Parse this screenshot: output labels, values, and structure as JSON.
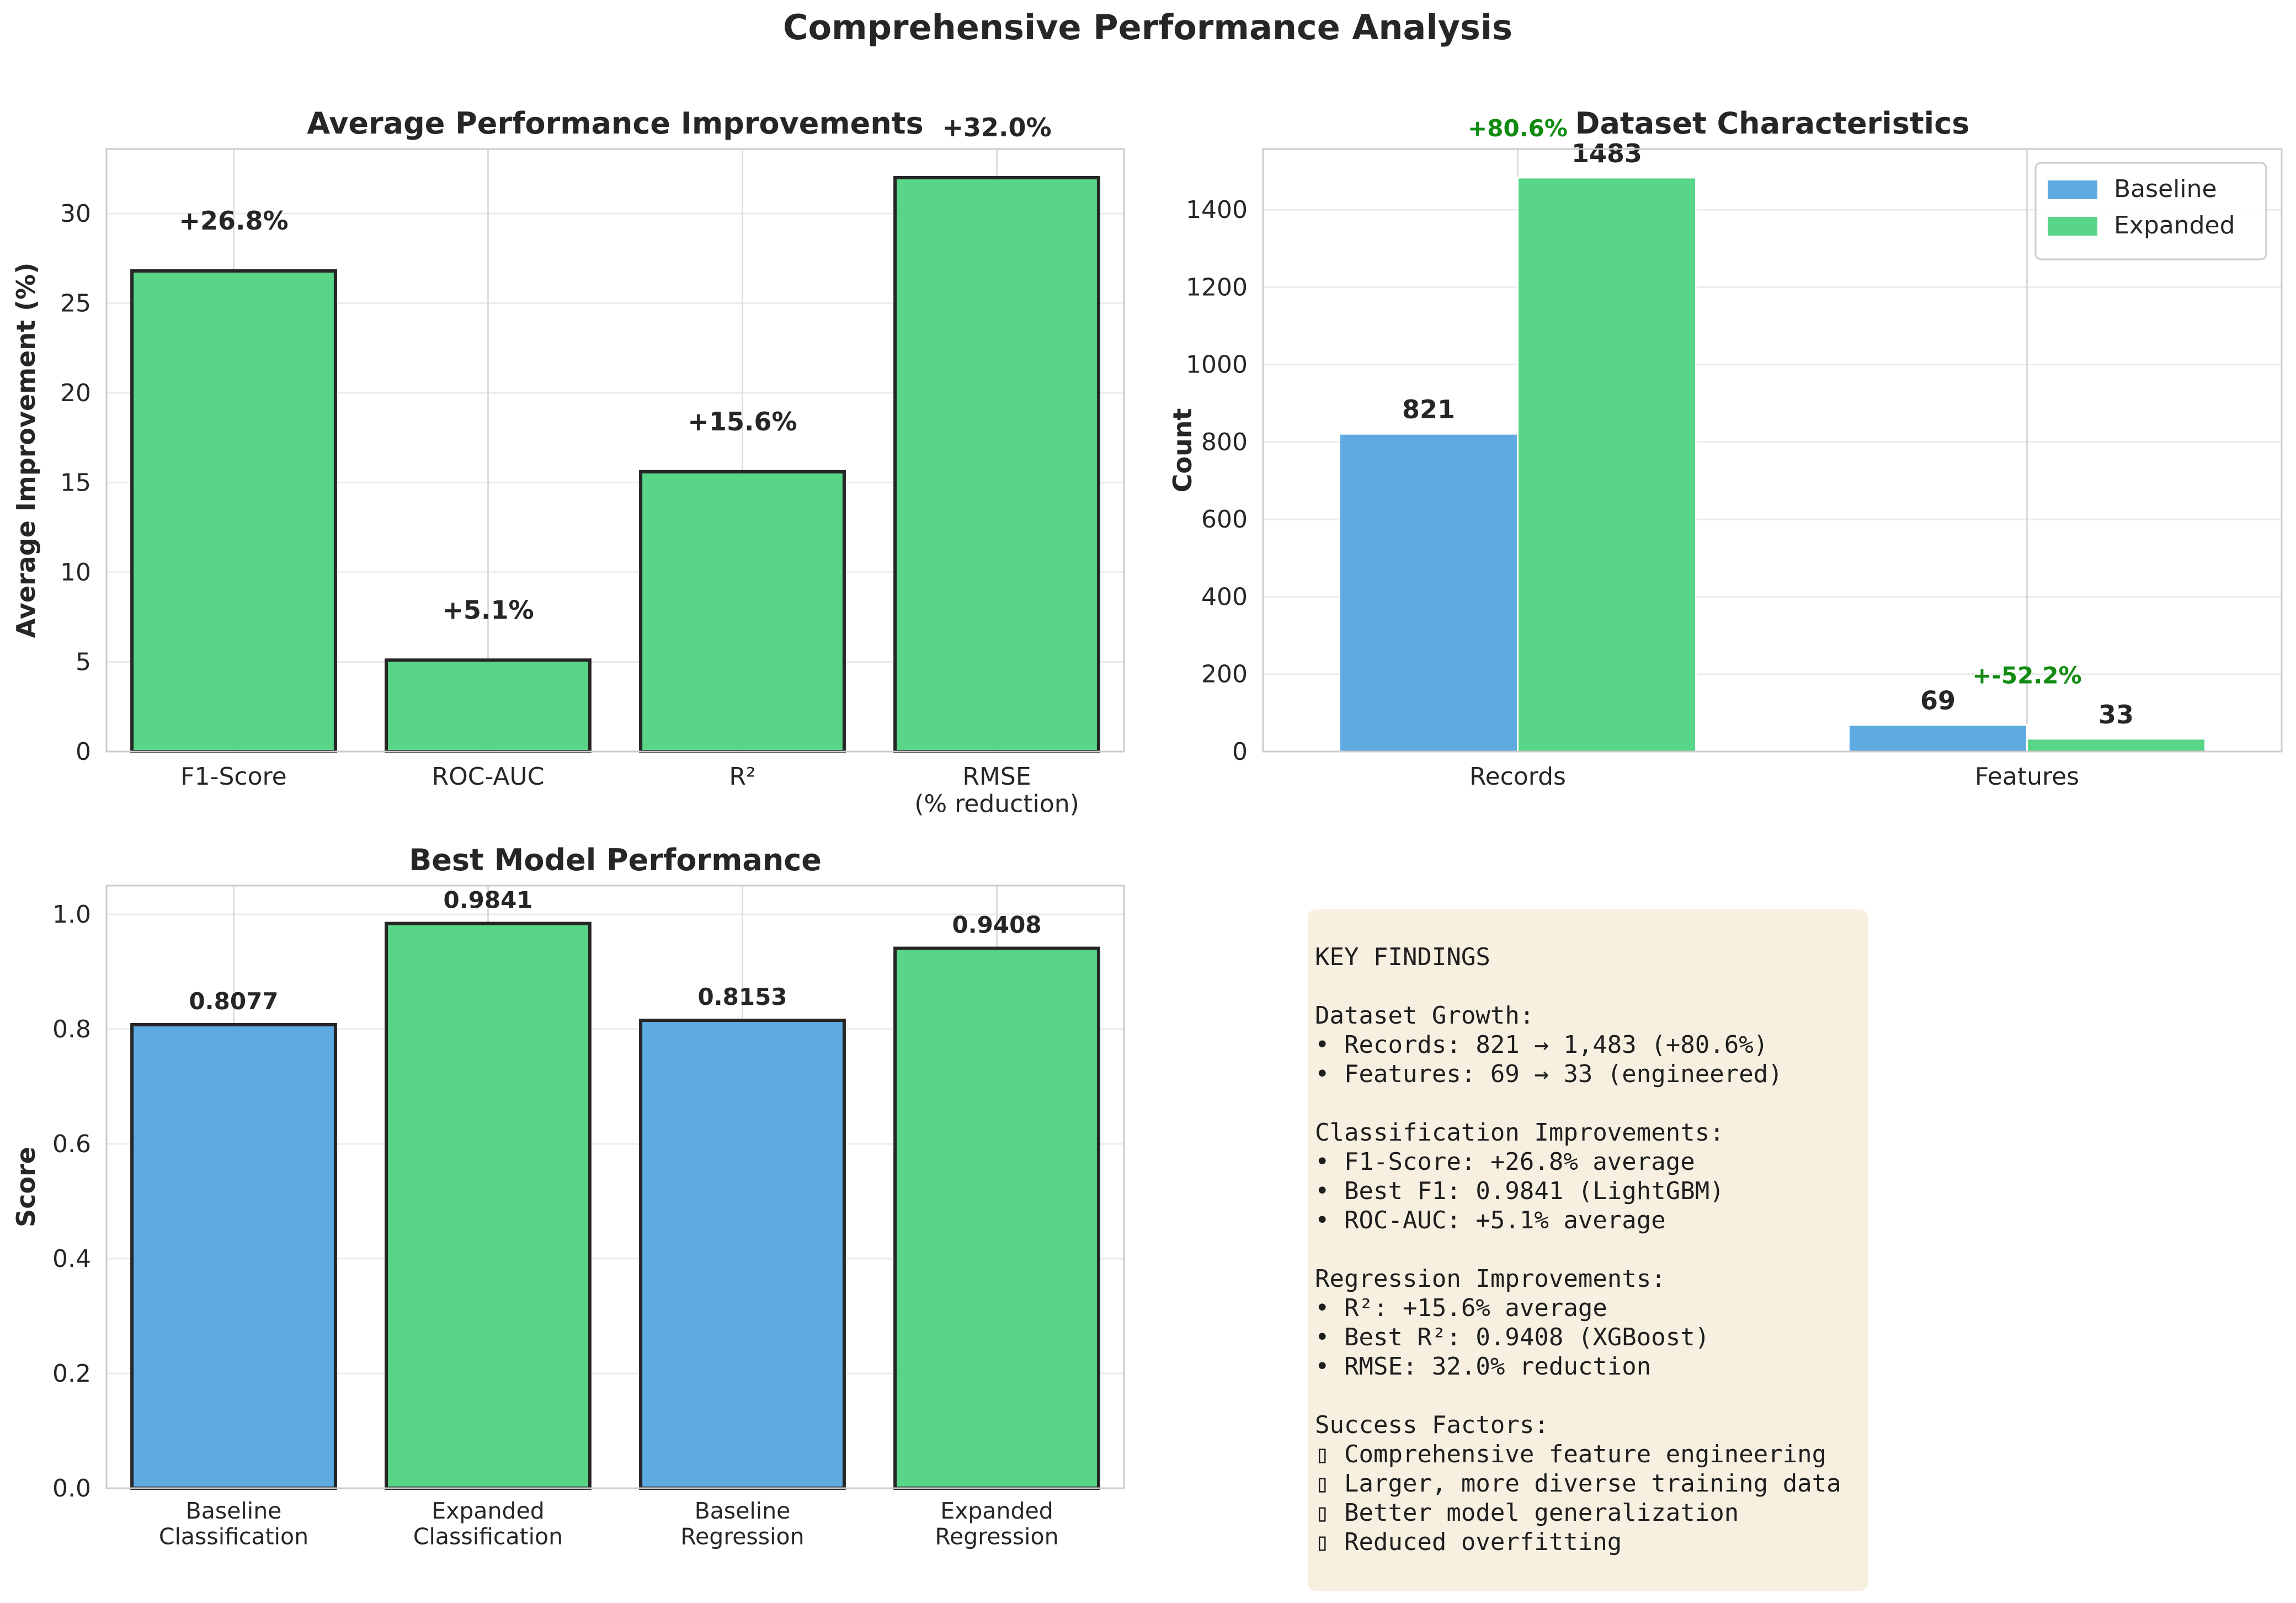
{
  "figure": {
    "title": "Comprehensive Performance Analysis",
    "colors": {
      "green": "#4fd37f",
      "blue": "#55a6e0",
      "annotation_green": "#118c11"
    }
  },
  "chart_data": [
    {
      "type": "bar",
      "title": "Average Performance Improvements",
      "xlabel": "",
      "ylabel": "Average Improvement (%)",
      "categories": [
        "F1-Score",
        "ROC-AUC",
        "R²",
        "RMSE\n(% reduction)"
      ],
      "values": [
        26.8,
        5.1,
        15.6,
        32.0
      ],
      "value_labels": [
        "+26.8%",
        "+5.1%",
        "+15.6%",
        "+32.0%"
      ],
      "ylim": [
        0,
        33.6
      ],
      "yticks": [
        0,
        5,
        10,
        15,
        20,
        25,
        30
      ],
      "grid": true,
      "color": "#4fd37f"
    },
    {
      "type": "bar",
      "title": "Dataset Characteristics",
      "xlabel": "",
      "ylabel": "Count",
      "categories": [
        "Records",
        "Features"
      ],
      "series": [
        {
          "name": "Baseline",
          "values": [
            821,
            69
          ],
          "color": "#55a6e0"
        },
        {
          "name": "Expanded",
          "values": [
            1483,
            33
          ],
          "color": "#4fd37f"
        }
      ],
      "value_labels": [
        [
          "821",
          "69"
        ],
        [
          "1483",
          "33"
        ]
      ],
      "change_labels": [
        "+80.6%",
        "+-52.2%"
      ],
      "ylim": [
        0,
        1557
      ],
      "yticks": [
        0,
        200,
        400,
        600,
        800,
        1000,
        1200,
        1400
      ],
      "legend": "top-right",
      "grid": true
    },
    {
      "type": "bar",
      "title": "Best Model Performance",
      "xlabel": "",
      "ylabel": "Score",
      "categories": [
        "Baseline\nClassification",
        "Expanded\nClassification",
        "Baseline\nRegression",
        "Expanded\nRegression"
      ],
      "values": [
        0.8077,
        0.9841,
        0.8153,
        0.9408
      ],
      "value_labels": [
        "0.8077",
        "0.9841",
        "0.8153",
        "0.9408"
      ],
      "colors": [
        "#55a6e0",
        "#4fd37f",
        "#55a6e0",
        "#4fd37f"
      ],
      "ylim": [
        0,
        1.05
      ],
      "yticks": [
        0.0,
        0.2,
        0.4,
        0.6,
        0.8,
        1.0
      ],
      "grid": true
    }
  ],
  "findings": {
    "lines": [
      "KEY FINDINGS",
      "",
      "Dataset Growth:",
      "• Records: 821 → 1,483 (+80.6%)",
      "• Features: 69 → 33 (engineered)",
      "",
      "Classification Improvements:",
      "• F1-Score: +26.8% average",
      "• Best F1: 0.9841 (LightGBM)",
      "• ROC-AUC: +5.1% average",
      "",
      "Regression Improvements:",
      "• R²: +15.6% average",
      "• Best R²: 0.9408 (XGBoost)",
      "• RMSE: 32.0% reduction",
      "",
      "Success Factors:",
      "▯ Comprehensive feature engineering",
      "▯ Larger, more diverse training data",
      "▯ Better model generalization",
      "▯ Reduced overfitting"
    ]
  }
}
